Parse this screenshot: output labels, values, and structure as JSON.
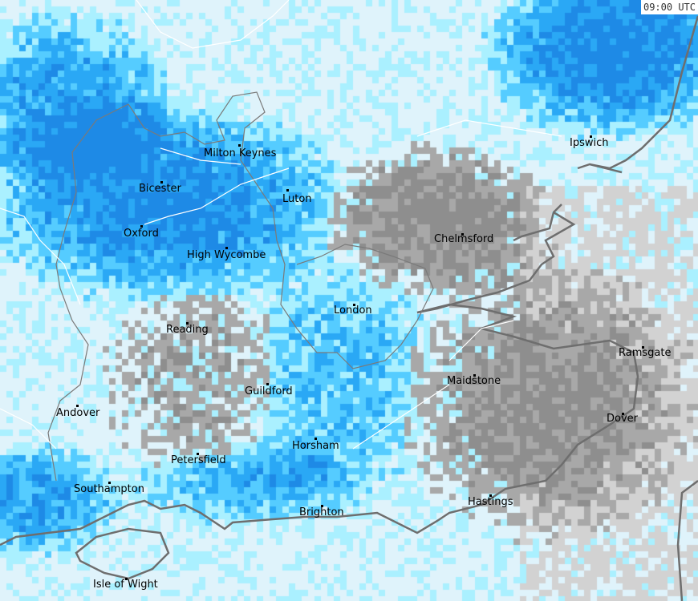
{
  "map": {
    "timestamp": "09:00 UTC",
    "colors": {
      "none": "#dff3fb",
      "light": "#aaf0ff",
      "moderate": "#55ccff",
      "heavy": "#2aa8f5",
      "very_heavy": "#1e8ae6",
      "grey_dark": "#8e8e8e",
      "grey_mid": "#a8a8a8",
      "grey_light": "#d2d2d2",
      "coast": "#707070",
      "boundary": "#ffffff"
    },
    "towns": [
      {
        "name": "Milton Keynes"
      },
      {
        "name": "Bicester"
      },
      {
        "name": "Oxford"
      },
      {
        "name": "High Wycombe"
      },
      {
        "name": "Luton"
      },
      {
        "name": "Chelmsford"
      },
      {
        "name": "Ipswich"
      },
      {
        "name": "London"
      },
      {
        "name": "Reading"
      },
      {
        "name": "Guildford"
      },
      {
        "name": "Maidstone"
      },
      {
        "name": "Ramsgate"
      },
      {
        "name": "Dover"
      },
      {
        "name": "Andover"
      },
      {
        "name": "Petersfield"
      },
      {
        "name": "Horsham"
      },
      {
        "name": "Southampton"
      },
      {
        "name": "Brighton"
      },
      {
        "name": "Hastings"
      },
      {
        "name": "Isle of Wight"
      }
    ]
  }
}
